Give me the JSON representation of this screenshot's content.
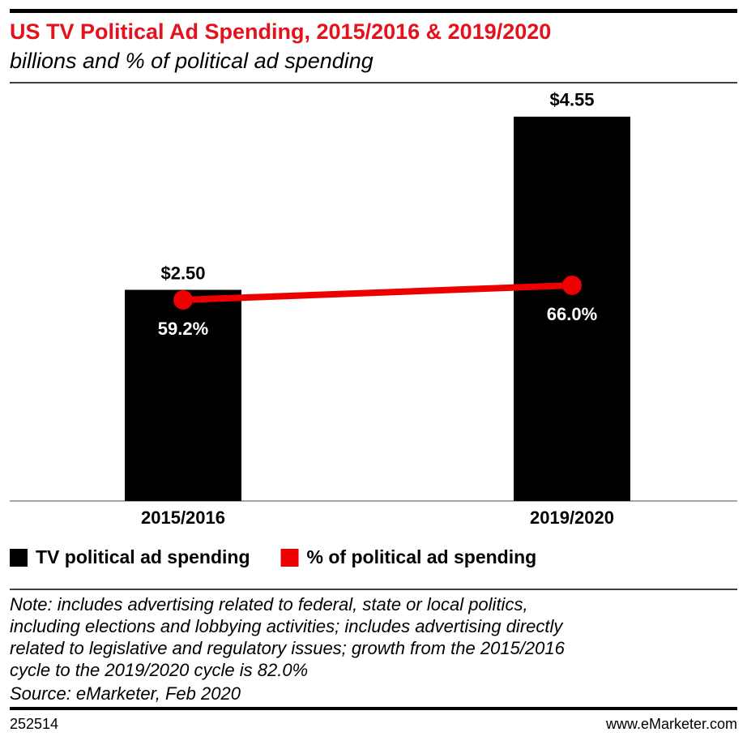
{
  "chart_data": {
    "type": "bar_line",
    "title": "US TV Political Ad Spending, 2015/2016 & 2019/2020",
    "subtitle": "billions and % of political ad spending",
    "categories": [
      "2015/2016",
      "2019/2020"
    ],
    "series": [
      {
        "name": "TV political ad spending",
        "color": "#000000",
        "type": "bar",
        "values": [
          2.5,
          4.55
        ],
        "value_labels": [
          "$2.50",
          "$4.55"
        ]
      },
      {
        "name": "% of political ad spending",
        "color": "#ee0000",
        "type": "line",
        "axis": "y2",
        "values": [
          59.2,
          66.0
        ],
        "value_labels": [
          "59.2%",
          "66.0%"
        ]
      }
    ],
    "ylim": [
      0,
      5
    ],
    "y2lim": [
      -34.5,
      162.3
    ],
    "note": [
      "Note: includes advertising related to federal, state or local politics,",
      "including elections and lobbying activities; includes advertising directly",
      "related to legislative and regulatory issues; growth from the 2015/2016",
      "cycle to the 2019/2020 cycle is 82.0%"
    ],
    "source": "Source: eMarketer, Feb 2020",
    "chart_id": "252514",
    "website": "www.eMarketer.com"
  }
}
